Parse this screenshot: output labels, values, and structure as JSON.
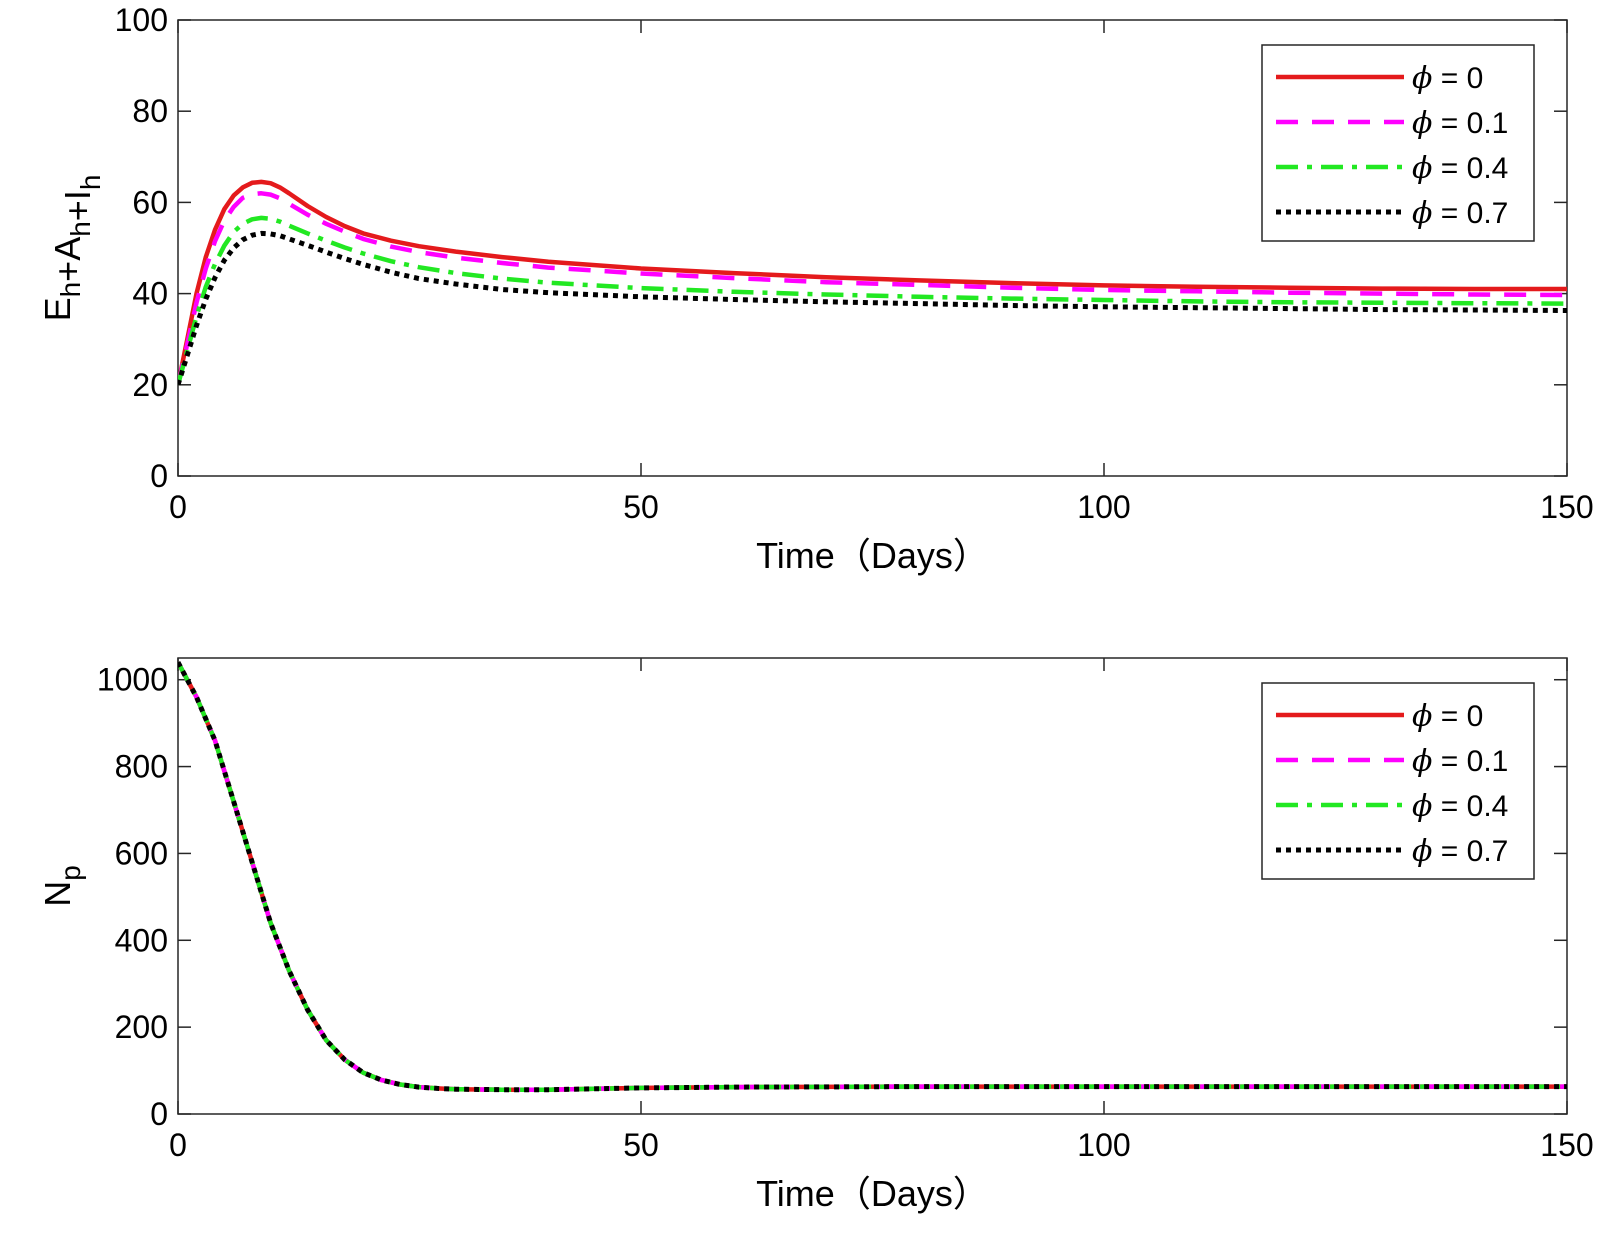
{
  "chart_data": [
    {
      "type": "line",
      "title": "",
      "xlabel": "Time（Days）",
      "ylabel": "E_h+A_h+I_h",
      "ylabel_parts": [
        {
          "text": "E",
          "sub": "h"
        },
        {
          "text": "+A",
          "sub": "h"
        },
        {
          "text": "+I",
          "sub": "h"
        }
      ],
      "xlim": [
        0,
        150
      ],
      "ylim": [
        0,
        100
      ],
      "xticks": [
        0,
        50,
        100,
        150
      ],
      "yticks": [
        0,
        20,
        40,
        60,
        80,
        100
      ],
      "grid": false,
      "legend_position": "top-right",
      "x": [
        0,
        1,
        2,
        3,
        4,
        5,
        6,
        7,
        8,
        9,
        10,
        11,
        12,
        14,
        16,
        18,
        20,
        23,
        26,
        30,
        35,
        40,
        50,
        60,
        70,
        80,
        90,
        100,
        110,
        120,
        130,
        140,
        150
      ],
      "series": [
        {
          "name": "ϕ = 0",
          "legend_symbol": "ϕ",
          "legend_text": " = 0",
          "color": "#e41a1c",
          "style": "solid",
          "values": [
            20,
            30,
            40,
            48,
            54,
            58.5,
            61.5,
            63.3,
            64.3,
            64.5,
            64.2,
            63.3,
            62.0,
            59.2,
            56.8,
            54.8,
            53.2,
            51.6,
            50.4,
            49.2,
            48.0,
            47.0,
            45.5,
            44.5,
            43.6,
            42.9,
            42.3,
            41.8,
            41.5,
            41.3,
            41.1,
            41.0,
            41.0
          ]
        },
        {
          "name": "ϕ = 0.1",
          "legend_symbol": "ϕ",
          "legend_text": " = 0.1",
          "color": "#ff00ff",
          "style": "dashed",
          "values": [
            20,
            29,
            38,
            45.5,
            51.5,
            56,
            59,
            61,
            61.8,
            62.0,
            61.7,
            60.9,
            59.7,
            57.3,
            55.3,
            53.6,
            52.0,
            50.3,
            49.1,
            47.9,
            46.7,
            45.7,
            44.4,
            43.4,
            42.5,
            41.9,
            41.3,
            40.8,
            40.5,
            40.2,
            40.0,
            39.8,
            39.7
          ]
        },
        {
          "name": "ϕ = 0.4",
          "legend_symbol": "ϕ",
          "legend_text": " = 0.4",
          "color": "#22e822",
          "style": "dashdot",
          "values": [
            20,
            27.5,
            35,
            41.5,
            46.5,
            50.5,
            53.5,
            55.3,
            56.3,
            56.6,
            56.4,
            55.8,
            54.9,
            53.2,
            51.6,
            50.1,
            48.8,
            47.1,
            45.8,
            44.5,
            43.3,
            42.4,
            41.2,
            40.4,
            39.8,
            39.3,
            38.9,
            38.6,
            38.3,
            38.1,
            38.0,
            37.9,
            37.8
          ]
        },
        {
          "name": "ϕ = 0.7",
          "legend_symbol": "ϕ",
          "legend_text": " = 0.7",
          "color": "#000000",
          "style": "dotted",
          "values": [
            20,
            26.5,
            33,
            38.8,
            43.5,
            47.3,
            50.0,
            51.8,
            52.8,
            53.2,
            53.1,
            52.7,
            52.0,
            50.6,
            49.1,
            47.7,
            46.4,
            44.7,
            43.3,
            42.1,
            40.9,
            40.2,
            39.3,
            38.7,
            38.2,
            37.8,
            37.4,
            37.1,
            36.9,
            36.7,
            36.5,
            36.4,
            36.3
          ]
        }
      ]
    },
    {
      "type": "line",
      "title": "",
      "xlabel": "Time（Days）",
      "ylabel": "N_p",
      "ylabel_parts": [
        {
          "text": "N",
          "sub": "p"
        }
      ],
      "xlim": [
        0,
        150
      ],
      "ylim": [
        0,
        1050
      ],
      "xticks": [
        0,
        50,
        100,
        150
      ],
      "yticks": [
        0,
        200,
        400,
        600,
        800,
        1000
      ],
      "grid": false,
      "legend_position": "top-right",
      "x": [
        0,
        2,
        4,
        6,
        8,
        10,
        12,
        14,
        16,
        18,
        20,
        22,
        24,
        26,
        28,
        30,
        35,
        40,
        45,
        50,
        60,
        80,
        100,
        120,
        150
      ],
      "series": [
        {
          "name": "ϕ = 0",
          "legend_symbol": "ϕ",
          "legend_text": " = 0",
          "color": "#e41a1c",
          "style": "solid",
          "values": [
            1040,
            960,
            860,
            720,
            580,
            440,
            330,
            240,
            170,
            125,
            95,
            78,
            68,
            62,
            59,
            57,
            56,
            56,
            58,
            60,
            62,
            63,
            63,
            63,
            63
          ]
        },
        {
          "name": "ϕ = 0.1",
          "legend_symbol": "ϕ",
          "legend_text": " = 0.1",
          "color": "#ff00ff",
          "style": "dashed",
          "values": [
            1040,
            960,
            860,
            720,
            580,
            440,
            330,
            240,
            170,
            125,
            95,
            78,
            68,
            62,
            59,
            57,
            56,
            56,
            58,
            60,
            62,
            63,
            63,
            63,
            63
          ]
        },
        {
          "name": "ϕ = 0.4",
          "legend_symbol": "ϕ",
          "legend_text": " = 0.4",
          "color": "#22e822",
          "style": "dashdot",
          "values": [
            1040,
            960,
            860,
            720,
            580,
            440,
            330,
            240,
            170,
            125,
            95,
            78,
            68,
            62,
            59,
            57,
            56,
            56,
            58,
            60,
            62,
            63,
            63,
            63,
            63
          ]
        },
        {
          "name": "ϕ = 0.7",
          "legend_symbol": "ϕ",
          "legend_text": " = 0.7",
          "color": "#000000",
          "style": "dotted",
          "values": [
            1040,
            960,
            860,
            720,
            580,
            440,
            330,
            240,
            170,
            125,
            95,
            78,
            68,
            62,
            59,
            57,
            56,
            56,
            58,
            60,
            62,
            63,
            63,
            63,
            63
          ]
        }
      ]
    }
  ]
}
